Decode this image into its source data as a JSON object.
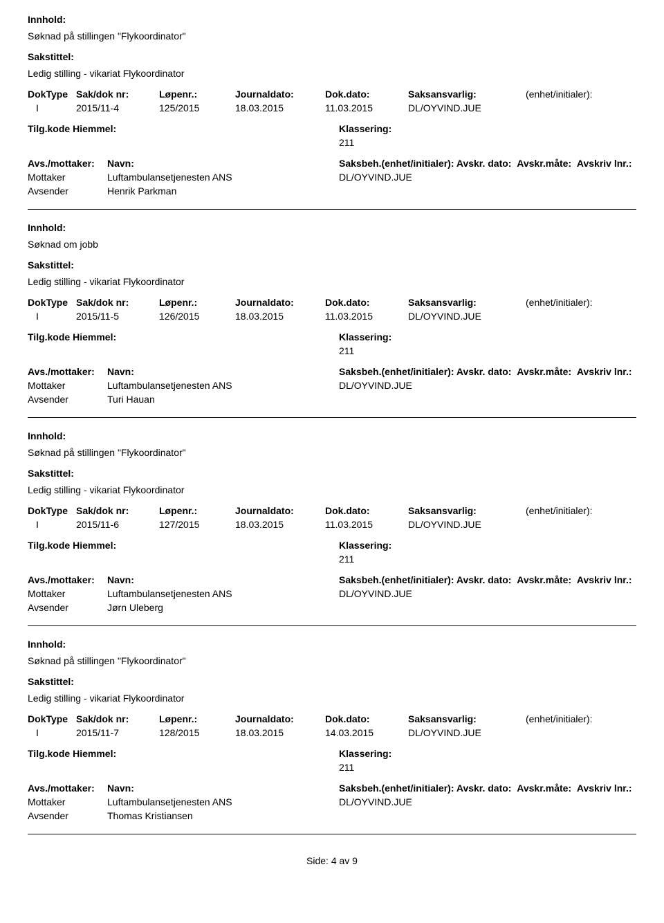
{
  "labels": {
    "innhold": "Innhold:",
    "sakstittel": "Sakstittel:",
    "doktype": "DokType",
    "sakdoknr": "Sak/dok nr:",
    "lopenr": "Løpenr.:",
    "journaldato": "Journaldato:",
    "dokdato": "Dok.dato:",
    "saksansvarlig": "Saksansvarlig:",
    "enhetinitialer": "(enhet/initialer):",
    "tilgkode": "Tilg.kode",
    "hjemmel": "Hiemmel:",
    "klassering": "Klassering:",
    "avsmottaker": "Avs./mottaker:",
    "navn": "Navn:",
    "saksbeh": "Saksbeh.(enhet/initialer):",
    "avskrdato": "Avskr. dato:",
    "avskrmate": "Avskr.måte:",
    "avskrivlnr": "Avskriv lnr.:",
    "mottaker": "Mottaker",
    "avsender": "Avsender"
  },
  "records": [
    {
      "innhold": "Søknad på stillingen \"Flykoordinator\"",
      "sakstittel": "Ledig stilling - vikariat Flykoordinator",
      "doktype": "I",
      "sakdoknr": "2015/11-4",
      "lopenr": "125/2015",
      "journaldato": "18.03.2015",
      "dokdato": "11.03.2015",
      "saksansvarlig": "DL/OYVIND.JUE",
      "klassering": "211",
      "mottaker_navn": "Luftambulansetjenesten ANS",
      "saksbeh": "DL/OYVIND.JUE",
      "avsender_navn": "Henrik Parkman"
    },
    {
      "innhold": "Søknad om jobb",
      "sakstittel": "Ledig stilling - vikariat Flykoordinator",
      "doktype": "I",
      "sakdoknr": "2015/11-5",
      "lopenr": "126/2015",
      "journaldato": "18.03.2015",
      "dokdato": "11.03.2015",
      "saksansvarlig": "DL/OYVIND.JUE",
      "klassering": "211",
      "mottaker_navn": "Luftambulansetjenesten ANS",
      "saksbeh": "DL/OYVIND.JUE",
      "avsender_navn": "Turi Hauan"
    },
    {
      "innhold": "Søknad på stillingen \"Flykoordinator\"",
      "sakstittel": "Ledig stilling - vikariat Flykoordinator",
      "doktype": "I",
      "sakdoknr": "2015/11-6",
      "lopenr": "127/2015",
      "journaldato": "18.03.2015",
      "dokdato": "11.03.2015",
      "saksansvarlig": "DL/OYVIND.JUE",
      "klassering": "211",
      "mottaker_navn": "Luftambulansetjenesten ANS",
      "saksbeh": "DL/OYVIND.JUE",
      "avsender_navn": "Jørn Uleberg"
    },
    {
      "innhold": "Søknad på stillingen \"Flykoordinator\"",
      "sakstittel": "Ledig stilling - vikariat Flykoordinator",
      "doktype": "I",
      "sakdoknr": "2015/11-7",
      "lopenr": "128/2015",
      "journaldato": "18.03.2015",
      "dokdato": "14.03.2015",
      "saksansvarlig": "DL/OYVIND.JUE",
      "klassering": "211",
      "mottaker_navn": "Luftambulansetjenesten ANS",
      "saksbeh": "DL/OYVIND.JUE",
      "avsender_navn": "Thomas Kristiansen"
    }
  ],
  "footer": "Side: 4 av 9"
}
